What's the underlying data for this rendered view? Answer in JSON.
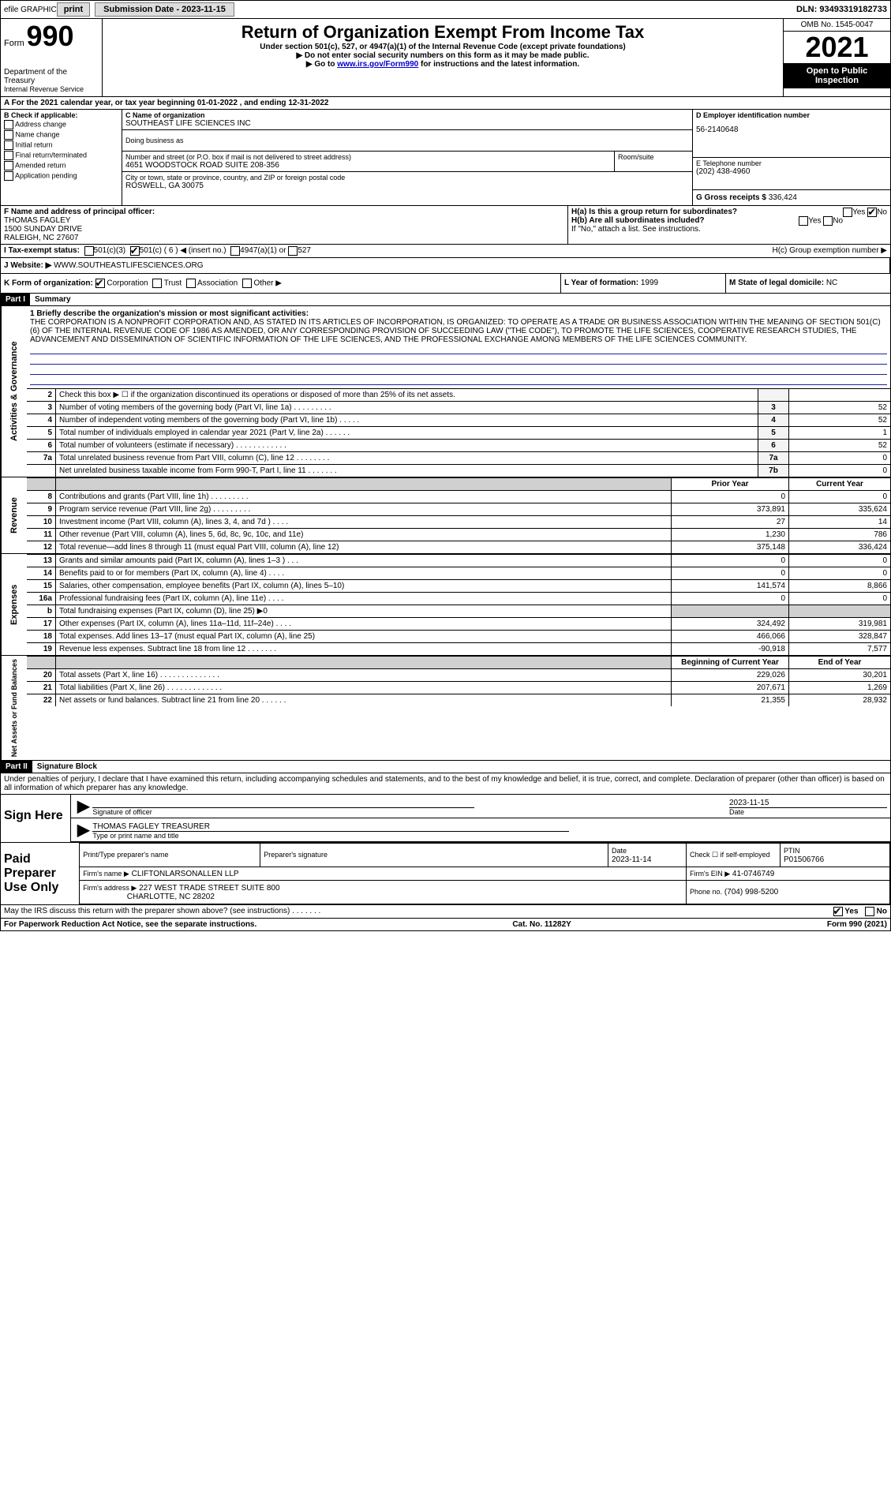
{
  "topbar": {
    "efile": "efile GRAPHIC",
    "print": "print",
    "submission": "Submission Date - 2023-11-15",
    "dln": "DLN: 93493319182733"
  },
  "header": {
    "form_prefix": "Form",
    "form_no": "990",
    "dept": "Department of the Treasury",
    "irs": "Internal Revenue Service",
    "title": "Return of Organization Exempt From Income Tax",
    "sub1": "Under section 501(c), 527, or 4947(a)(1) of the Internal Revenue Code (except private foundations)",
    "sub2": "▶ Do not enter social security numbers on this form as it may be made public.",
    "sub3_prefix": "▶ Go to ",
    "sub3_link": "www.irs.gov/Form990",
    "sub3_suffix": " for instructions and the latest information.",
    "omb": "OMB No. 1545-0047",
    "year": "2021",
    "open": "Open to Public Inspection"
  },
  "rowA": "A For the 2021 calendar year, or tax year beginning 01-01-2022   , and ending 12-31-2022",
  "colB": {
    "header": "B Check if applicable:",
    "items": [
      "Address change",
      "Name change",
      "Initial return",
      "Final return/terminated",
      "Amended return",
      "Application pending"
    ]
  },
  "colC": {
    "name_label": "C Name of organization",
    "name": "SOUTHEAST LIFE SCIENCES INC",
    "dba_label": "Doing business as",
    "addr_label": "Number and street (or P.O. box if mail is not delivered to street address)",
    "addr": "4651 WOODSTOCK ROAD SUITE 208-356",
    "room_label": "Room/suite",
    "city_label": "City or town, state or province, country, and ZIP or foreign postal code",
    "city": "ROSWELL, GA  30075"
  },
  "colD": {
    "label": "D Employer identification number",
    "value": "56-2140648"
  },
  "colE": {
    "label": "E Telephone number",
    "value": "(202) 438-4960"
  },
  "colG": {
    "label": "G Gross receipts $",
    "value": "336,424"
  },
  "rowF": {
    "label": "F  Name and address of principal officer:",
    "name": "THOMAS FAGLEY",
    "addr1": "1500 SUNDAY DRIVE",
    "addr2": "RALEIGH, NC  27607"
  },
  "rowH": {
    "ha": "H(a)  Is this a group return for subordinates?",
    "hb": "H(b)  Are all subordinates included?",
    "hb_note": "If \"No,\" attach a list. See instructions.",
    "hc": "H(c)  Group exemption number ▶",
    "yes": "Yes",
    "no": "No"
  },
  "rowI": {
    "label": "I    Tax-exempt status:",
    "opt1": "501(c)(3)",
    "opt2": "501(c) ( 6 ) ◀ (insert no.)",
    "opt3": "4947(a)(1) or",
    "opt4": "527"
  },
  "rowJ": {
    "label": "J   Website: ▶",
    "value": "WWW.SOUTHEASTLIFESCIENCES.ORG"
  },
  "rowK": {
    "label": "K Form of organization:",
    "corp": "Corporation",
    "trust": "Trust",
    "assoc": "Association",
    "other": "Other ▶"
  },
  "rowL": {
    "label": "L Year of formation:",
    "value": "1999"
  },
  "rowM": {
    "label": "M State of legal domicile:",
    "value": "NC"
  },
  "part1": {
    "label": "Part I",
    "title": "Summary"
  },
  "mission": {
    "label": "1   Briefly describe the organization's mission or most significant activities:",
    "text": "THE CORPORATION IS A NONPROFIT CORPORATION AND, AS STATED IN ITS ARTICLES OF INCORPORATION, IS ORGANIZED: TO OPERATE AS A TRADE OR BUSINESS ASSOCIATION WITHIN THE MEANING OF SECTION 501(C)(6) OF THE INTERNAL REVENUE CODE OF 1986 AS AMENDED, OR ANY CORRESPONDING PROVISION OF SUCCEEDING LAW (\"THE CODE\"), TO PROMOTE THE LIFE SCIENCES, COOPERATIVE RESEARCH STUDIES, THE ADVANCEMENT AND DISSEMINATION OF SCIENTIFIC INFORMATION OF THE LIFE SCIENCES, AND THE PROFESSIONAL EXCHANGE AMONG MEMBERS OF THE LIFE SCIENCES COMMUNITY."
  },
  "lines_gov": [
    {
      "n": "2",
      "text": "Check this box ▶ ☐ if the organization discontinued its operations or disposed of more than 25% of its net assets.",
      "box": "",
      "val": ""
    },
    {
      "n": "3",
      "text": "Number of voting members of the governing body (Part VI, line 1a)  .    .    .    .    .    .    .    .    .",
      "box": "3",
      "val": "52"
    },
    {
      "n": "4",
      "text": "Number of independent voting members of the governing body (Part VI, line 1b)   .    .    .    .    .",
      "box": "4",
      "val": "52"
    },
    {
      "n": "5",
      "text": "Total number of individuals employed in calendar year 2021 (Part V, line 2a)   .    .    .    .    .    .",
      "box": "5",
      "val": "1"
    },
    {
      "n": "6",
      "text": "Total number of volunteers (estimate if necessary)   .    .    .    .    .    .    .    .    .    .    .    .",
      "box": "6",
      "val": "52"
    },
    {
      "n": "7a",
      "text": "Total unrelated business revenue from Part VIII, column (C), line 12   .    .    .    .    .    .    .    .",
      "box": "7a",
      "val": "0"
    },
    {
      "n": "",
      "text": "Net unrelated business taxable income from Form 990-T, Part I, line 11   .    .    .    .    .    .    .",
      "box": "7b",
      "val": "0"
    }
  ],
  "rev_header": {
    "prior": "Prior Year",
    "current": "Current Year"
  },
  "lines_rev": [
    {
      "n": "8",
      "text": "Contributions and grants (Part VIII, line 1h)   .    .    .    .    .    .    .    .    .",
      "p": "0",
      "c": "0"
    },
    {
      "n": "9",
      "text": "Program service revenue (Part VIII, line 2g)   .    .    .    .    .    .    .    .    .",
      "p": "373,891",
      "c": "335,624"
    },
    {
      "n": "10",
      "text": "Investment income (Part VIII, column (A), lines 3, 4, and 7d )   .    .    .    .",
      "p": "27",
      "c": "14"
    },
    {
      "n": "11",
      "text": "Other revenue (Part VIII, column (A), lines 5, 6d, 8c, 9c, 10c, and 11e)",
      "p": "1,230",
      "c": "786"
    },
    {
      "n": "12",
      "text": "Total revenue—add lines 8 through 11 (must equal Part VIII, column (A), line 12)",
      "p": "375,148",
      "c": "336,424"
    }
  ],
  "lines_exp": [
    {
      "n": "13",
      "text": "Grants and similar amounts paid (Part IX, column (A), lines 1–3 )   .    .    .",
      "p": "0",
      "c": "0"
    },
    {
      "n": "14",
      "text": "Benefits paid to or for members (Part IX, column (A), line 4)   .    .    .    .",
      "p": "0",
      "c": "0"
    },
    {
      "n": "15",
      "text": "Salaries, other compensation, employee benefits (Part IX, column (A), lines 5–10)",
      "p": "141,574",
      "c": "8,866"
    },
    {
      "n": "16a",
      "text": "Professional fundraising fees (Part IX, column (A), line 11e)   .    .    .    .",
      "p": "0",
      "c": "0"
    },
    {
      "n": "b",
      "text": "Total fundraising expenses (Part IX, column (D), line 25) ▶0",
      "p": "shade",
      "c": "shade"
    },
    {
      "n": "17",
      "text": "Other expenses (Part IX, column (A), lines 11a–11d, 11f–24e)   .    .    .    .",
      "p": "324,492",
      "c": "319,981"
    },
    {
      "n": "18",
      "text": "Total expenses. Add lines 13–17 (must equal Part IX, column (A), line 25)",
      "p": "466,066",
      "c": "328,847"
    },
    {
      "n": "19",
      "text": "Revenue less expenses. Subtract line 18 from line 12   .    .    .    .    .    .    .",
      "p": "-90,918",
      "c": "7,577"
    }
  ],
  "net_header": {
    "prior": "Beginning of Current Year",
    "current": "End of Year"
  },
  "lines_net": [
    {
      "n": "20",
      "text": "Total assets (Part X, line 16)   .    .    .    .    .    .    .    .    .    .    .    .    .    .",
      "p": "229,026",
      "c": "30,201"
    },
    {
      "n": "21",
      "text": "Total liabilities (Part X, line 26)   .    .    .    .    .    .    .    .    .    .    .    .    .",
      "p": "207,671",
      "c": "1,269"
    },
    {
      "n": "22",
      "text": "Net assets or fund balances. Subtract line 21 from line 20   .    .    .    .    .    .",
      "p": "21,355",
      "c": "28,932"
    }
  ],
  "side_labels": {
    "gov": "Activities & Governance",
    "rev": "Revenue",
    "exp": "Expenses",
    "net": "Net Assets or Fund Balances"
  },
  "part2": {
    "label": "Part II",
    "title": "Signature Block",
    "penalty": "Under penalties of perjury, I declare that I have examined this return, including accompanying schedules and statements, and to the best of my knowledge and belief, it is true, correct, and complete. Declaration of preparer (other than officer) is based on all information of which preparer has any knowledge."
  },
  "sign": {
    "label": "Sign Here",
    "sig_officer": "Signature of officer",
    "date": "2023-11-15",
    "date_label": "Date",
    "name": "THOMAS FAGLEY  TREASURER",
    "name_label": "Type or print name and title"
  },
  "paid": {
    "label": "Paid Preparer Use Only",
    "col1": "Print/Type preparer's name",
    "col2": "Preparer's signature",
    "col3": "Date",
    "col3v": "2023-11-14",
    "col4": "Check ☐ if self-employed",
    "col5": "PTIN",
    "col5v": "P01506766",
    "firm_label": "Firm's name    ▶",
    "firm": "CLIFTONLARSONALLEN LLP",
    "ein_label": "Firm's EIN ▶",
    "ein": "41-0746749",
    "addr_label": "Firm's address ▶",
    "addr": "227 WEST TRADE STREET SUITE 800",
    "addr2": "CHARLOTTE, NC  28202",
    "phone_label": "Phone no.",
    "phone": "(704) 998-5200"
  },
  "footer": {
    "q": "May the IRS discuss this return with the preparer shown above? (see instructions)   .    .    .    .    .    .    .",
    "yes": "Yes",
    "no": "No",
    "paperwork": "For Paperwork Reduction Act Notice, see the separate instructions.",
    "cat": "Cat. No. 11282Y",
    "formno": "Form 990 (2021)"
  }
}
